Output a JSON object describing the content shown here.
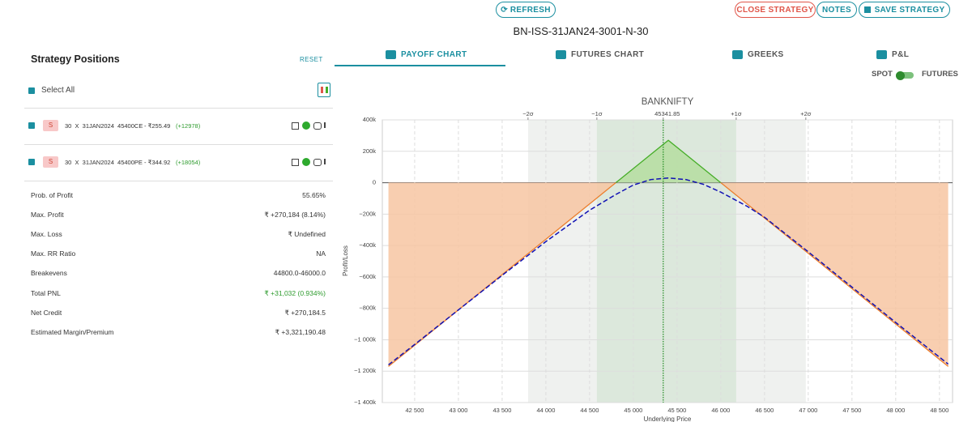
{
  "header": {
    "refresh": "REFRESH",
    "close": "CLOSE STRATEGY",
    "notes": "NOTES",
    "save": "SAVE STRATEGY",
    "title": "BN-ISS-31JAN24-3001-N-30"
  },
  "panel": {
    "title": "Strategy Positions",
    "reset": "RESET",
    "select_all": "Select All",
    "positions": [
      {
        "side": "S",
        "text": "30  X  31JAN2024  45400CE",
        "premium": "- ₹255.49",
        "pnl": "(+12978)"
      },
      {
        "side": "S",
        "text": "30  X  31JAN2024  45400PE",
        "premium": "- ₹344.92",
        "pnl": "(+18054)"
      }
    ],
    "stats": [
      {
        "label": "Prob. of Profit",
        "value": "55.65%"
      },
      {
        "label": "Max. Profit",
        "value": "₹ +270,184 (8.14%)"
      },
      {
        "label": "Max. Loss",
        "value": "₹ Undefined"
      },
      {
        "label": "Max. RR Ratio",
        "value": "NA"
      },
      {
        "label": "Breakevens",
        "value": "44800.0-46000.0"
      },
      {
        "label": "Total PNL",
        "value": "₹ +31,032 (0.934%)"
      },
      {
        "label": "Net Credit",
        "value": "₹ +270,184.5"
      },
      {
        "label": "Estimated Margin/Premium",
        "value": "₹ +3,321,190.48"
      }
    ]
  },
  "tabs": [
    "PAYOFF CHART",
    "FUTURES CHART",
    "GREEKS",
    "P&L"
  ],
  "toggle": {
    "left": "SPOT",
    "right": "FUTURES"
  },
  "chart_data": {
    "type": "line",
    "title": "BANKNIFTY",
    "x_label": "Underlying Price",
    "y_label": "Profit/Loss",
    "x": [
      42200,
      42500,
      43000,
      43500,
      44000,
      44500,
      44800,
      45000,
      45200,
      45400,
      45600,
      45800,
      46000,
      46300,
      46500,
      47000,
      47500,
      48000,
      48600
    ],
    "series": [
      {
        "color": "#ec7e2c",
        "fill": "#f7c6a2",
        "color_above": "#45ad27",
        "fill_above": "#b7dea3",
        "values": [
          -1170000,
          -1035000,
          -810000,
          -585000,
          -360000,
          -135000,
          0,
          90000,
          180000,
          270000,
          180000,
          90000,
          0,
          -135000,
          -225000,
          -450000,
          -675000,
          -900000,
          -1170000
        ]
      },
      {
        "color": "#1212b4",
        "dashed": true,
        "values": [
          -1160000,
          -1030000,
          -810000,
          -590000,
          -375000,
          -175000,
          -75000,
          -15000,
          20000,
          30000,
          20000,
          -10000,
          -60000,
          -150000,
          -220000,
          -440000,
          -665000,
          -890000,
          -1155000
        ]
      }
    ],
    "xlim": [
      42130,
      48650
    ],
    "ylim": [
      -1400000,
      400000
    ],
    "xticks": [
      {
        "value": 42500,
        "label": "42 500"
      },
      {
        "value": 43000,
        "label": "43 000"
      },
      {
        "value": 43500,
        "label": "43 500"
      },
      {
        "value": 44000,
        "label": "44 000"
      },
      {
        "value": 44500,
        "label": "44 500"
      },
      {
        "value": 45000,
        "label": "45 000"
      },
      {
        "value": 45500,
        "label": "45 500"
      },
      {
        "value": 46000,
        "label": "46 000"
      },
      {
        "value": 46500,
        "label": "46 500"
      },
      {
        "value": 47000,
        "label": "47 000"
      },
      {
        "value": 47500,
        "label": "47 500"
      },
      {
        "value": 48000,
        "label": "48 000"
      },
      {
        "value": 48500,
        "label": "48 500"
      }
    ],
    "yticks": [
      {
        "value": 400000,
        "label": "400k"
      },
      {
        "value": 200000,
        "label": "200k"
      },
      0,
      {
        "value": -200000,
        "label": "−200k"
      },
      {
        "value": -400000,
        "label": "−400k"
      },
      {
        "value": -600000,
        "label": "−600k"
      },
      {
        "value": -800000,
        "label": "−800k"
      },
      {
        "value": -1000000,
        "label": "−1 000k"
      },
      {
        "value": -1200000,
        "label": "−1 200k"
      },
      {
        "value": -1400000,
        "label": "−1 400k"
      }
    ],
    "x2ticks": [
      {
        "value": 43796,
        "label": "−2σ"
      },
      {
        "value": 44583,
        "label": "−1σ"
      },
      45341.85,
      {
        "value": 46176,
        "label": "+1σ"
      },
      {
        "value": 46972,
        "label": "+2σ"
      }
    ],
    "grid": true
  }
}
